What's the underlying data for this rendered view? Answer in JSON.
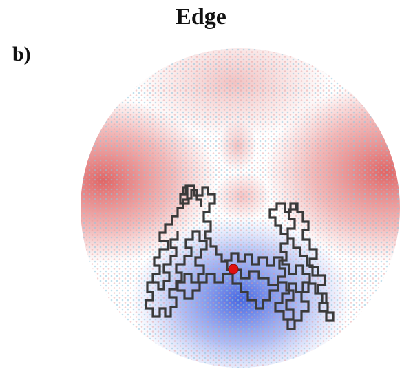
{
  "figure": {
    "title": "Edge",
    "panel_label": "b)"
  },
  "colors": {
    "positive": "#d94a4a",
    "negative": "#3c5fe0",
    "neutral": "#ffffff",
    "trajectory": "#3a3a3a",
    "start_point": "#e01010",
    "lattice_dots": "#8fc4dc"
  }
}
